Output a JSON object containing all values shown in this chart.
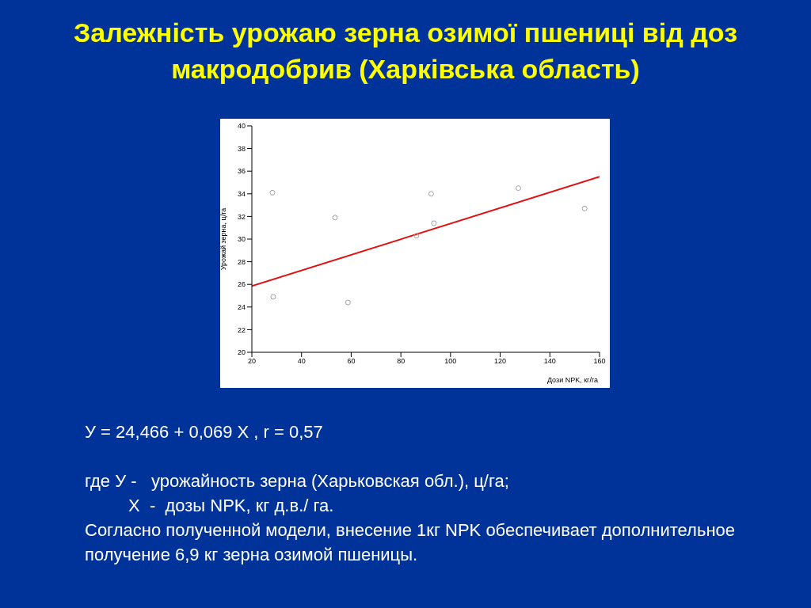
{
  "chart_data": {
    "type": "scatter",
    "title": "Залежність урожаю зерна озимої пшениці від доз макродобрив (Харківська область)",
    "xlabel": "Дози NPK, кг/га",
    "ylabel": "Урожай зерна, ц/га",
    "xlim": [
      20,
      160
    ],
    "ylim": [
      20,
      40
    ],
    "xticks": [
      20,
      40,
      60,
      80,
      100,
      120,
      140,
      160
    ],
    "yticks": [
      20,
      22,
      24,
      26,
      28,
      30,
      32,
      34,
      36,
      38,
      40
    ],
    "series": [
      {
        "type": "scatter",
        "color": "#a0a0a0",
        "marker": "circle",
        "x": [
          28.3,
          28.6,
          53.5,
          58.7,
          86.3,
          92.2,
          93.3,
          127.3,
          154
        ],
        "values": [
          34.1,
          24.9,
          31.9,
          24.4,
          30.3,
          34.0,
          31.4,
          34.5,
          32.7
        ]
      },
      {
        "type": "line",
        "color": "#e01010",
        "marker": "none",
        "line_style": "solid",
        "x": [
          20,
          160
        ],
        "values": [
          25.85,
          35.51
        ]
      }
    ],
    "annotations": [
      "У = 24,466 + 0,069 Х , r = 0,57",
      "где У -   урожайность зерна (Харьковская обл.), ц/га;",
      "Х  -  дозы NPK, кг д.в./ га.",
      "Согласно полученной модели, внесение 1кг NPK обеспечивает дополнительное получение 6,9 кг зерна озимой пшеницы."
    ]
  }
}
